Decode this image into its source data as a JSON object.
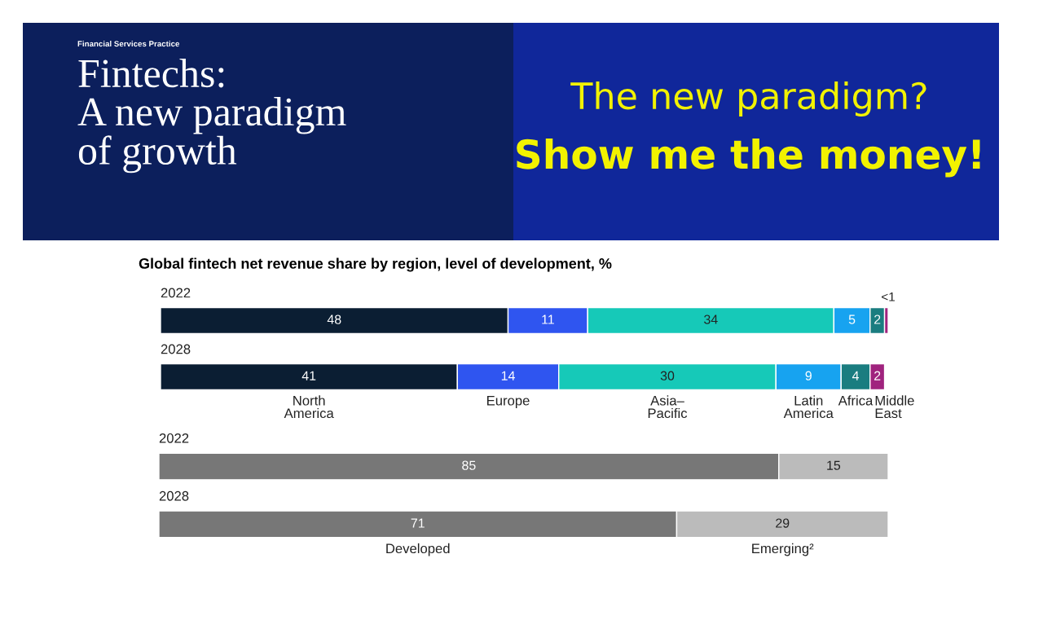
{
  "chart_data": [
    {
      "type": "bar",
      "orientation": "horizontal",
      "stacked": true,
      "title": "Global fintech net revenue share by region, level of development, %",
      "annotations": [
        "Financial Services Practice",
        "Fintechs:\nA new paradigm\nof growth",
        "The new paradigm?",
        "Show me the money!"
      ],
      "categories": [
        "2022",
        "2028"
      ],
      "series": [
        {
          "name": "North\nAmerica",
          "color": "#0b1e33",
          "values": [
            48,
            41
          ],
          "value_labels": [
            "48",
            "41"
          ]
        },
        {
          "name": "Europe",
          "color": "#2f55f0",
          "values": [
            11,
            14
          ],
          "value_labels": [
            "11",
            "14"
          ]
        },
        {
          "name": "Asia–\nPacific",
          "color": "#16c9b8",
          "values": [
            34,
            30
          ],
          "value_labels": [
            "34",
            "30"
          ]
        },
        {
          "name": "Latin\nAmerica",
          "color": "#17a3f0",
          "values": [
            5,
            9
          ],
          "value_labels": [
            "5",
            "9"
          ]
        },
        {
          "name": "Africa",
          "color": "#1a7d80",
          "values": [
            2,
            4
          ],
          "value_labels": [
            "2",
            "4"
          ]
        },
        {
          "name": "Middle\nEast",
          "color": "#a0237e",
          "values": [
            0.5,
            2
          ],
          "value_labels": [
            "<1",
            "2"
          ]
        }
      ]
    },
    {
      "type": "bar",
      "orientation": "horizontal",
      "stacked": true,
      "categories": [
        "2022",
        "2028"
      ],
      "series": [
        {
          "name": "Developed",
          "color": "#777777",
          "values": [
            85,
            71
          ],
          "value_labels": [
            "85",
            "71"
          ]
        },
        {
          "name": "Emerging²",
          "color": "#bbbbbb",
          "values": [
            15,
            29
          ],
          "value_labels": [
            "15",
            "29"
          ]
        }
      ]
    }
  ]
}
